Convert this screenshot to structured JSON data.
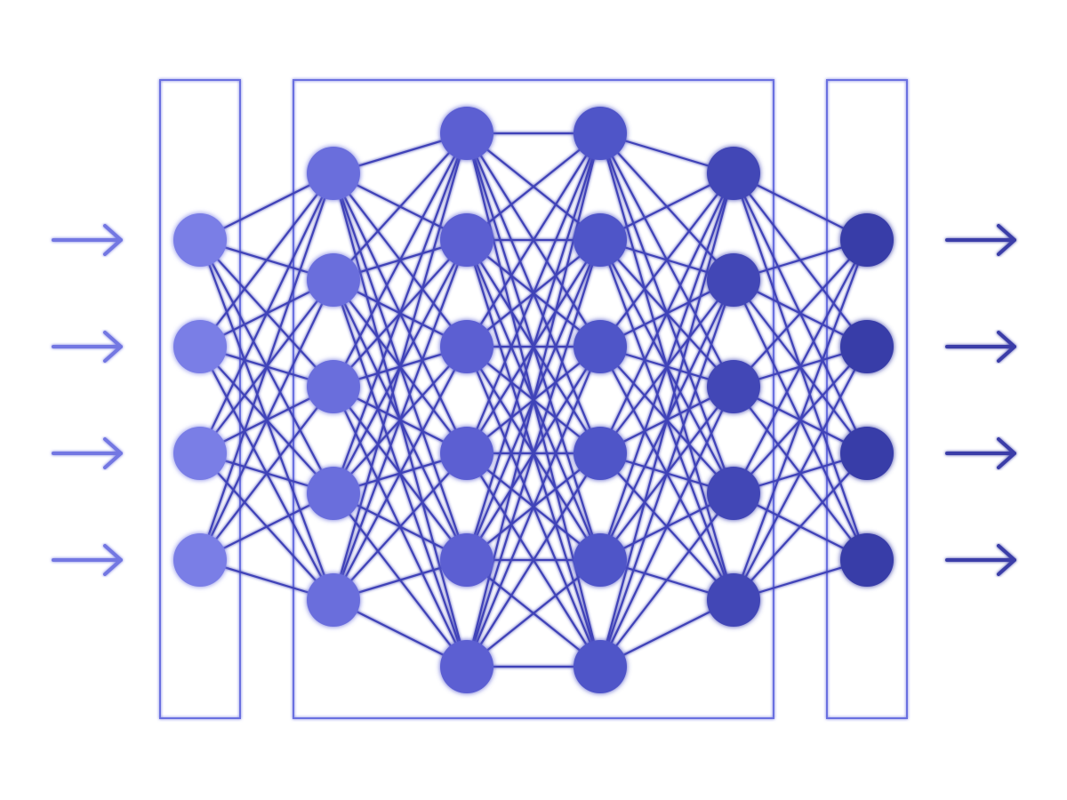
{
  "diagram": {
    "type": "fully-connected neural network",
    "layers": [
      {
        "role": "input",
        "nodes": 4,
        "color": "#7a7ee6"
      },
      {
        "role": "hidden",
        "nodes": 5,
        "color": "#6a6edc"
      },
      {
        "role": "hidden",
        "nodes": 6,
        "color": "#5b5fd2"
      },
      {
        "role": "hidden",
        "nodes": 6,
        "color": "#5054c8"
      },
      {
        "role": "hidden",
        "nodes": 5,
        "color": "#4246b6"
      },
      {
        "role": "output",
        "nodes": 4,
        "color": "#393ca8"
      }
    ],
    "connections": "fully-connected",
    "input_arrows": 4,
    "output_arrows": 4,
    "groups": [
      "input",
      "hidden",
      "output"
    ],
    "colors": {
      "edge": "#3f43b8",
      "frame": "#6b6fe0",
      "input_arrow": "#7377e2",
      "output_arrow": "#3a3ea8",
      "background": "#ffffff"
    }
  }
}
